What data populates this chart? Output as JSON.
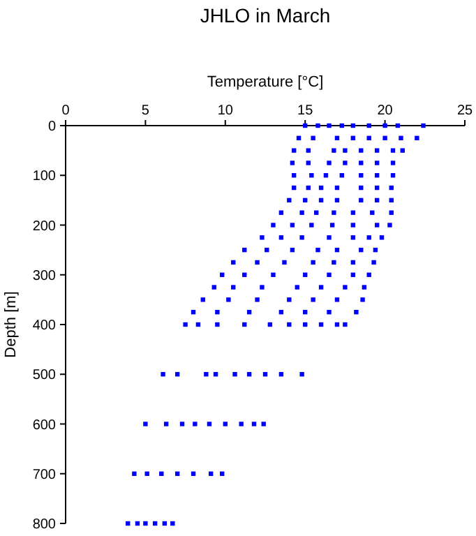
{
  "chart_data": {
    "type": "scatter",
    "title": "JHLO in March",
    "xlabel": "Temperature [°C]",
    "ylabel": "Depth [m]",
    "xlim": [
      0,
      25
    ],
    "xticks": [
      0,
      5,
      10,
      15,
      20,
      25
    ],
    "ylim": [
      800,
      0
    ],
    "yticks": [
      0,
      100,
      200,
      300,
      400,
      500,
      600,
      700,
      800
    ],
    "grid": false,
    "marker": "square",
    "series": [
      {
        "color": "#0000ff",
        "x": [
          15,
          15.8,
          16.5,
          17.3,
          18,
          19,
          20,
          20.8,
          22.4,
          14.6,
          15.5,
          17,
          18,
          19,
          20,
          21,
          22,
          14.3,
          15.2,
          16.8,
          17.5,
          18.5,
          19.5,
          20.5,
          21.1,
          14.2,
          15.2,
          16.5,
          17.5,
          18.5,
          19.5,
          20.5,
          14.3,
          15.4,
          16.3,
          17.3,
          18.5,
          19.5,
          20.5,
          14.3,
          15.2,
          16,
          17,
          18.5,
          19.5,
          20.4,
          14,
          15,
          16,
          17,
          18.5,
          19.5,
          20.4,
          13.5,
          14.8,
          15.7,
          16.8,
          18,
          19.2,
          20.4,
          13,
          14.2,
          15.4,
          16.7,
          18,
          19.5,
          20.3,
          12.3,
          13.5,
          14.8,
          16.5,
          18,
          19,
          19.8,
          11.2,
          12.6,
          14.2,
          15.8,
          17,
          18.5,
          19.4,
          10.5,
          12,
          13.7,
          15.5,
          16.8,
          18,
          19.3,
          9.8,
          11.2,
          13,
          15,
          16.5,
          18,
          19,
          9.3,
          10.5,
          12.3,
          14.5,
          16,
          17.5,
          18.7,
          8.6,
          10.2,
          12,
          14,
          15.5,
          17,
          18.6,
          8,
          9.5,
          11.5,
          13.5,
          15,
          16.5,
          18.2,
          7.5,
          8.3,
          9.5,
          11.2,
          12.8,
          14,
          15,
          16,
          17,
          17.5,
          6.1,
          7,
          8.8,
          9.4,
          10.6,
          11.5,
          12.5,
          13.5,
          14.8,
          5,
          6.3,
          7.3,
          8.1,
          9,
          10,
          11,
          11.8,
          12.4,
          4.3,
          5.1,
          6,
          7,
          8,
          9.1,
          9.8,
          3.9,
          4.5,
          5,
          5.6,
          6.2,
          6.7
        ],
        "values": [
          0,
          0,
          0,
          0,
          0,
          0,
          0,
          0,
          0,
          25,
          25,
          25,
          25,
          25,
          25,
          25,
          25,
          50,
          50,
          50,
          50,
          50,
          50,
          50,
          50,
          75,
          75,
          75,
          75,
          75,
          75,
          75,
          100,
          100,
          100,
          100,
          100,
          100,
          100,
          125,
          125,
          125,
          125,
          125,
          125,
          125,
          150,
          150,
          150,
          150,
          150,
          150,
          150,
          175,
          175,
          175,
          175,
          175,
          175,
          175,
          200,
          200,
          200,
          200,
          200,
          200,
          200,
          225,
          225,
          225,
          225,
          225,
          225,
          225,
          250,
          250,
          250,
          250,
          250,
          250,
          250,
          275,
          275,
          275,
          275,
          275,
          275,
          275,
          300,
          300,
          300,
          300,
          300,
          300,
          300,
          325,
          325,
          325,
          325,
          325,
          325,
          325,
          350,
          350,
          350,
          350,
          350,
          350,
          350,
          375,
          375,
          375,
          375,
          375,
          375,
          375,
          400,
          400,
          400,
          400,
          400,
          400,
          400,
          400,
          400,
          400,
          500,
          500,
          500,
          500,
          500,
          500,
          500,
          500,
          500,
          600,
          600,
          600,
          600,
          600,
          600,
          600,
          600,
          600,
          700,
          700,
          700,
          700,
          700,
          700,
          700,
          800,
          800,
          800,
          800,
          800,
          800
        ]
      }
    ]
  }
}
